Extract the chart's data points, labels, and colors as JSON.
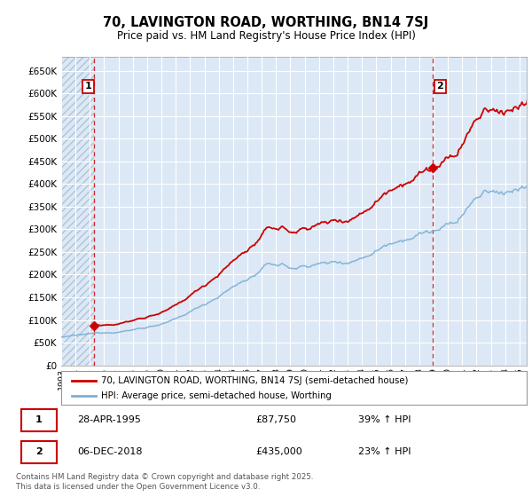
{
  "title": "70, LAVINGTON ROAD, WORTHING, BN14 7SJ",
  "subtitle": "Price paid vs. HM Land Registry's House Price Index (HPI)",
  "ylim": [
    0,
    680000
  ],
  "yticks": [
    0,
    50000,
    100000,
    150000,
    200000,
    250000,
    300000,
    350000,
    400000,
    450000,
    500000,
    550000,
    600000,
    650000
  ],
  "ytick_labels": [
    "£0",
    "£50K",
    "£100K",
    "£150K",
    "£200K",
    "£250K",
    "£300K",
    "£350K",
    "£400K",
    "£450K",
    "£500K",
    "£550K",
    "£600K",
    "£650K"
  ],
  "xlim_start": 1993.0,
  "xlim_end": 2025.5,
  "sale1_date": 1995.29,
  "sale1_price": 87750,
  "sale1_label": "1",
  "sale2_date": 2018.92,
  "sale2_price": 435000,
  "sale2_label": "2",
  "legend1": "70, LAVINGTON ROAD, WORTHING, BN14 7SJ (semi-detached house)",
  "legend2": "HPI: Average price, semi-detached house, Worthing",
  "table_row1": [
    "1",
    "28-APR-1995",
    "£87,750",
    "39% ↑ HPI"
  ],
  "table_row2": [
    "2",
    "06-DEC-2018",
    "£435,000",
    "23% ↑ HPI"
  ],
  "footer": "Contains HM Land Registry data © Crown copyright and database right 2025.\nThis data is licensed under the Open Government Licence v3.0.",
  "price_color": "#cc0000",
  "hpi_color": "#7bafd4",
  "bg_color": "#dce8f5",
  "grid_color": "#ffffff",
  "title_fontsize": 10.5,
  "subtitle_fontsize": 8.5
}
